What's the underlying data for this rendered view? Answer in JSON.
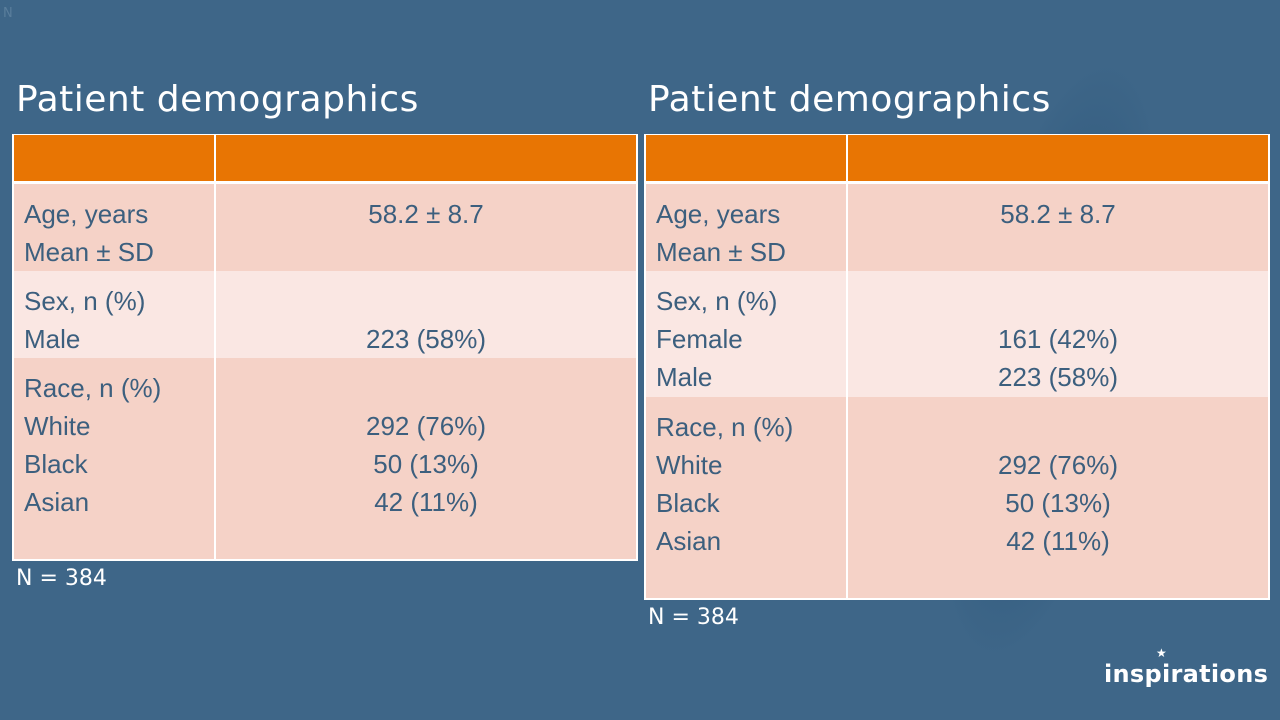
{
  "corner_mark": "N",
  "logo": {
    "text": "inspirations"
  },
  "panels": [
    {
      "title": "Patient demographics",
      "rows": [
        {
          "label_lines": [
            "Age, years",
            "Mean ± SD"
          ],
          "value_lines": [
            "58.2 ± 8.7",
            ""
          ]
        },
        {
          "label_lines": [
            "Sex, n (%)",
            "Male"
          ],
          "value_lines": [
            "",
            "223 (58%)"
          ]
        },
        {
          "label_lines": [
            "Race, n (%)",
            "White",
            "Black",
            "Asian"
          ],
          "value_lines": [
            "",
            "292 (76%)",
            "50 (13%)",
            "42 (11%)"
          ]
        }
      ],
      "footnote": "N = 384"
    },
    {
      "title": "Patient demographics",
      "rows": [
        {
          "label_lines": [
            "Age, years",
            "Mean ± SD"
          ],
          "value_lines": [
            "58.2 ± 8.7",
            ""
          ]
        },
        {
          "label_lines": [
            "Sex, n (%)",
            "Female",
            "Male"
          ],
          "value_lines": [
            "",
            "161 (42%)",
            "223 (58%)"
          ]
        },
        {
          "label_lines": [
            "Race, n (%)",
            "White",
            "Black",
            "Asian"
          ],
          "value_lines": [
            "",
            "292 (76%)",
            "50 (13%)",
            "42 (11%)"
          ]
        }
      ],
      "footnote": "N = 384"
    }
  ],
  "colors": {
    "background": "#3e6688",
    "header": "#e87503",
    "row_dark": "#f5d2c7",
    "row_light": "#fae7e3",
    "cell_text": "#3c5f7e"
  }
}
